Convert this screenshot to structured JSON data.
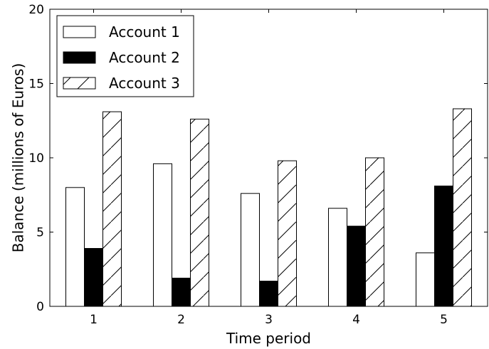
{
  "chart_data": {
    "type": "bar",
    "xlabel": "Time period",
    "ylabel": "Balance (millions of Euros)",
    "categories": [
      "1",
      "2",
      "3",
      "4",
      "5"
    ],
    "ylim": [
      0,
      20
    ],
    "yticks": [
      "0",
      "5",
      "10",
      "15",
      "20"
    ],
    "grid": false,
    "legend_position": "top-left",
    "series": [
      {
        "name": "Account 1",
        "values": [
          8.0,
          9.6,
          7.6,
          6.6,
          3.6
        ],
        "fill": "#ffffff",
        "pattern": "none"
      },
      {
        "name": "Account 2",
        "values": [
          3.9,
          1.9,
          1.7,
          5.4,
          8.1
        ],
        "fill": "#000000",
        "pattern": "none"
      },
      {
        "name": "Account 3",
        "values": [
          13.1,
          12.6,
          9.8,
          10.0,
          13.3
        ],
        "fill": "#ffffff",
        "pattern": "hatch"
      }
    ]
  }
}
